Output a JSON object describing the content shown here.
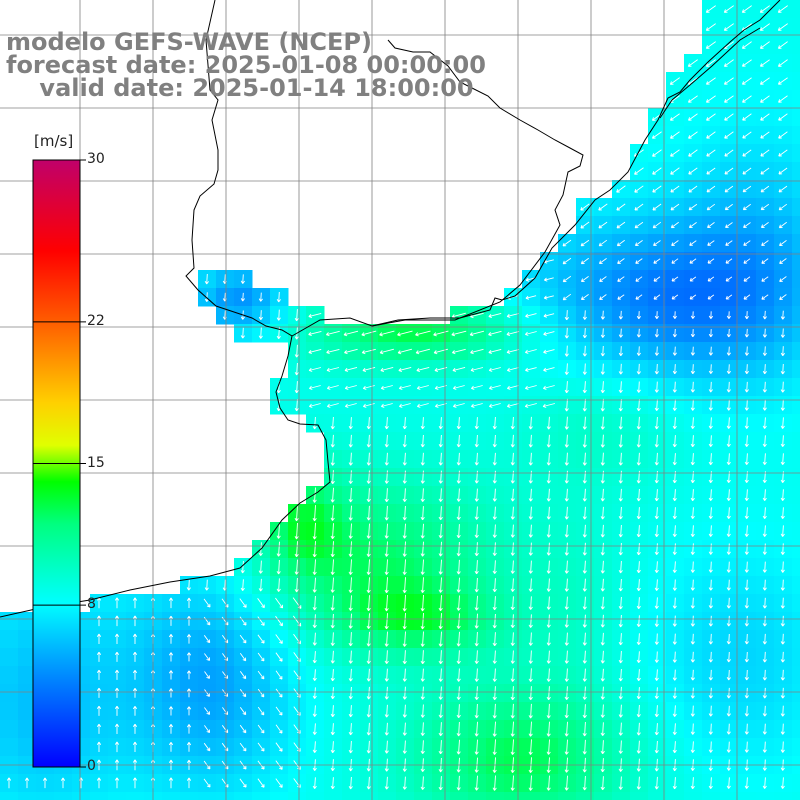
{
  "title": {
    "line1": "modelo GEFS-WAVE (NCEP)",
    "line2": "forecast date: 2025-01-08 00:00:00",
    "line3": "    valid date: 2025-01-14 18:00:00"
  },
  "colorbar": {
    "unit": "[m/s]",
    "ticks": [
      {
        "label": "30",
        "value": 30
      },
      {
        "label": "22",
        "value": 22
      },
      {
        "label": "15",
        "value": 15
      },
      {
        "label": "8",
        "value": 8
      },
      {
        "label": "0",
        "value": 0
      }
    ],
    "range": [
      0,
      30
    ],
    "colors": [
      "#0000ff",
      "#0080ff",
      "#00ffff",
      "#00ff00",
      "#ffff00",
      "#ff8000",
      "#ff0000",
      "#c0006a"
    ]
  },
  "chart_data": {
    "type": "heatmap",
    "variable": "wind speed",
    "unit": "m/s",
    "color_range": [
      0,
      30
    ],
    "arrows": "white direction vectors"
  },
  "grid": {
    "color": "#808080"
  },
  "colors": {
    "land": "#ffffff",
    "coast": "#000000",
    "arrow": "#ffffff"
  }
}
